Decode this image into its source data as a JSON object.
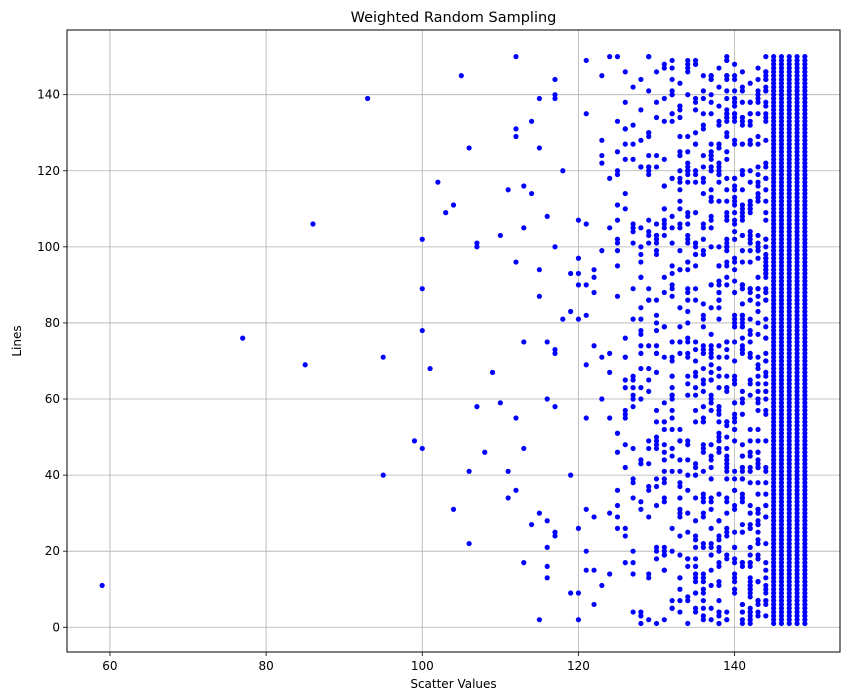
{
  "chart_data": {
    "type": "scatter",
    "title": "Weighted Random Sampling",
    "xlabel": "Scatter Values",
    "ylabel": "Lines",
    "xlim": [
      54.5,
      153.5
    ],
    "ylim": [
      -6.5,
      157
    ],
    "xticks": [
      60,
      80,
      100,
      120,
      140
    ],
    "yticks": [
      0,
      20,
      40,
      60,
      80,
      100,
      120,
      140
    ],
    "grid": true,
    "marker_color": "#0000ff",
    "dense_columns": {
      "x": [
        145,
        146,
        147,
        148,
        149
      ],
      "y_from": 1,
      "y_to": 150
    },
    "points": [
      [
        59,
        11
      ],
      [
        77,
        76
      ],
      [
        85,
        69
      ],
      [
        86,
        106
      ],
      [
        93,
        139
      ],
      [
        95,
        71
      ],
      [
        95,
        40
      ],
      [
        99,
        49
      ],
      [
        100,
        102
      ],
      [
        100,
        89
      ],
      [
        100,
        78
      ],
      [
        100,
        47
      ],
      [
        101,
        68
      ],
      [
        102,
        117
      ],
      [
        103,
        109
      ],
      [
        104,
        111
      ],
      [
        104,
        31
      ],
      [
        105,
        145
      ],
      [
        106,
        126
      ],
      [
        106,
        41
      ],
      [
        106,
        22
      ],
      [
        107,
        101
      ],
      [
        107,
        100
      ],
      [
        107,
        58
      ],
      [
        108,
        46
      ],
      [
        109,
        67
      ],
      [
        110,
        103
      ],
      [
        110,
        59
      ],
      [
        111,
        115
      ],
      [
        111,
        41
      ],
      [
        111,
        34
      ],
      [
        112,
        150
      ],
      [
        112,
        131
      ],
      [
        112,
        129
      ],
      [
        112,
        96
      ],
      [
        112,
        55
      ],
      [
        112,
        36
      ],
      [
        113,
        116
      ],
      [
        113,
        105
      ],
      [
        113,
        75
      ],
      [
        113,
        47
      ],
      [
        113,
        17
      ],
      [
        114,
        133
      ],
      [
        114,
        114
      ],
      [
        114,
        27
      ],
      [
        115,
        139
      ],
      [
        115,
        126
      ],
      [
        115,
        94
      ],
      [
        115,
        87
      ],
      [
        115,
        30
      ],
      [
        115,
        2
      ],
      [
        116,
        108
      ],
      [
        116,
        75
      ],
      [
        116,
        60
      ],
      [
        116,
        28
      ],
      [
        116,
        21
      ],
      [
        116,
        16
      ],
      [
        116,
        13
      ],
      [
        117,
        144
      ],
      [
        117,
        140
      ],
      [
        117,
        139
      ],
      [
        117,
        100
      ],
      [
        117,
        73
      ],
      [
        117,
        72
      ],
      [
        117,
        58
      ],
      [
        117,
        25
      ],
      [
        117,
        24
      ],
      [
        118,
        120
      ],
      [
        118,
        81
      ],
      [
        119,
        93
      ],
      [
        119,
        83
      ],
      [
        119,
        40
      ],
      [
        119,
        9
      ],
      [
        120,
        107
      ],
      [
        120,
        97
      ],
      [
        120,
        93
      ],
      [
        120,
        90
      ],
      [
        120,
        81
      ],
      [
        120,
        26
      ],
      [
        120,
        9
      ],
      [
        120,
        2
      ],
      [
        121,
        149
      ],
      [
        121,
        135
      ],
      [
        121,
        106
      ],
      [
        121,
        90
      ],
      [
        121,
        82
      ],
      [
        121,
        69
      ],
      [
        121,
        55
      ],
      [
        121,
        31
      ],
      [
        121,
        20
      ],
      [
        121,
        15
      ],
      [
        122,
        94
      ],
      [
        122,
        92
      ],
      [
        122,
        88
      ],
      [
        122,
        74
      ],
      [
        122,
        29
      ],
      [
        122,
        15
      ],
      [
        122,
        6
      ],
      [
        123,
        145
      ],
      [
        123,
        128
      ],
      [
        123,
        124
      ],
      [
        123,
        122
      ],
      [
        123,
        99
      ],
      [
        123,
        71
      ],
      [
        123,
        60
      ],
      [
        123,
        11
      ],
      [
        124,
        150
      ],
      [
        124,
        118
      ],
      [
        124,
        105
      ],
      [
        124,
        72
      ],
      [
        124,
        67
      ],
      [
        124,
        55
      ],
      [
        124,
        30
      ],
      [
        124,
        14
      ]
    ]
  }
}
